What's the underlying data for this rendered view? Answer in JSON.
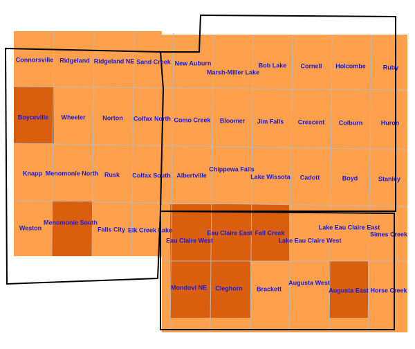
{
  "colors": {
    "background": "#ffffff",
    "quad_fill": "#ffa04d",
    "quad_highlight": "#d95f0e",
    "grid_line": "#b8b8b8",
    "boundary": "#000000",
    "label": "#1a1adb"
  },
  "labels": {
    "connorsville": "Connorsville",
    "ridgeland": "Ridgeland",
    "ridgeland_ne": "Ridgeland NE",
    "sand_creek": "Sand Creek",
    "new_auburn": "New Auburn",
    "marsh_miller_lake": "Marsh-Miller Lake",
    "bob_lake": "Bob Lake",
    "cornell": "Cornell",
    "holcombe": "Holcombe",
    "ruby": "Ruby",
    "boyceville": "Boyceville",
    "wheeler": "Wheeler",
    "norton": "Norton",
    "colfax_north": "Colfax North",
    "como_creek": "Como Creek",
    "bloomer": "Bloomer",
    "jim_falls": "Jim Falls",
    "crescent": "Crescent",
    "colburn": "Colburn",
    "huron": "Huron",
    "knapp": "Knapp",
    "menomonie_north": "Menomonie North",
    "rusk": "Rusk",
    "colfax_south": "Colfax South",
    "albertville": "Albertville",
    "chippewa_falls": "Chippewa Falls",
    "lake_wissota": "Lake Wissota",
    "cadott": "Cadott",
    "boyd": "Boyd",
    "stanley": "Stanley",
    "weston": "Weston",
    "menomonie_south": "Menomonie South",
    "falls_city": "Falls City",
    "elk_creek_lake": "Elk Creek Lake",
    "eau_claire_west": "Eau Claire West",
    "eau_claire_east": "Eau Claire East",
    "fall_creek": "Fall Creek",
    "lake_eau_claire_west": "Lake Eau Claire West",
    "lake_eau_claire_east": "Lake Eau Claire East",
    "simes_creek": "Simes Creek",
    "mondovi_ne": "Mondovi NE",
    "cleghorn": "Cleghorn",
    "brackett": "Brackett",
    "augusta_west": "Augusta West",
    "augusta_east": "Augusta East",
    "horse_creek": "Horse Creek"
  }
}
